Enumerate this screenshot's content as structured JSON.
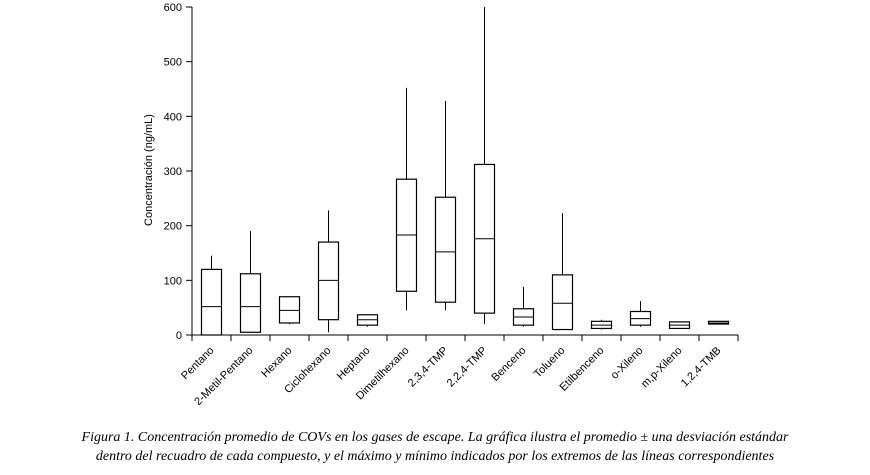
{
  "chart_data": {
    "type": "box",
    "ylabel": "Concentración (ng/mL)",
    "ylim": [
      0,
      600
    ],
    "yticks": [
      0,
      100,
      200,
      300,
      400,
      500,
      600
    ],
    "categories": [
      "Pentano",
      "2-Metil-Pentano",
      "Hexano",
      "Ciclohexano",
      "Heptano",
      "Dimetilhexano",
      "2,3,4-TMP",
      "2,2,4-TMP",
      "Benceno",
      "Tolueno",
      "Etilbenceno",
      "o-Xileno",
      "m,p-Xileno",
      "1,2,4-TMB"
    ],
    "boxes": [
      {
        "min": 0,
        "q1": 0,
        "mean": 52,
        "q3": 120,
        "max": 145
      },
      {
        "min": 5,
        "q1": 5,
        "mean": 52,
        "q3": 112,
        "max": 190
      },
      {
        "min": 20,
        "q1": 22,
        "mean": 45,
        "q3": 70,
        "max": 70
      },
      {
        "min": 5,
        "q1": 28,
        "mean": 100,
        "q3": 170,
        "max": 228
      },
      {
        "min": 15,
        "q1": 18,
        "mean": 28,
        "q3": 37,
        "max": 38
      },
      {
        "min": 45,
        "q1": 80,
        "mean": 183,
        "q3": 285,
        "max": 452
      },
      {
        "min": 45,
        "q1": 60,
        "mean": 152,
        "q3": 252,
        "max": 428
      },
      {
        "min": 20,
        "q1": 40,
        "mean": 176,
        "q3": 312,
        "max": 600
      },
      {
        "min": 15,
        "q1": 18,
        "mean": 33,
        "q3": 48,
        "max": 88
      },
      {
        "min": 10,
        "q1": 10,
        "mean": 58,
        "q3": 110,
        "max": 223
      },
      {
        "min": 10,
        "q1": 12,
        "mean": 18,
        "q3": 25,
        "max": 28
      },
      {
        "min": 15,
        "q1": 18,
        "mean": 30,
        "q3": 43,
        "max": 62
      },
      {
        "min": 12,
        "q1": 12,
        "mean": 18,
        "q3": 24,
        "max": 25
      },
      {
        "min": 20,
        "q1": 20,
        "mean": 22,
        "q3": 25,
        "max": 25
      }
    ]
  },
  "caption": {
    "line1": "Figura 1. Concentración promedio de COVs en los gases de escape. La gráfica ilustra el promedio ± una desviación estándar",
    "line2": "dentro del recuadro de cada compuesto, y el máximo y mínimo indicados por los extremos de las líneas correspondientes"
  }
}
